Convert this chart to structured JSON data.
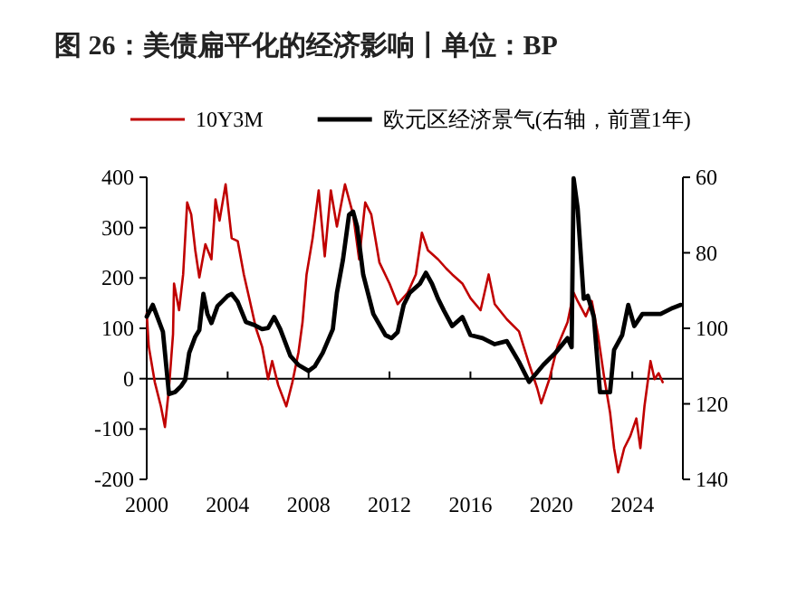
{
  "chart_data": {
    "type": "line",
    "title": "图 26：美债扁平化的经济影响丨单位：BP",
    "legend": "top",
    "xlim": [
      2000,
      2026.5
    ],
    "xticks": [
      2000,
      2004,
      2008,
      2012,
      2016,
      2020,
      2024
    ],
    "ylim": [
      -200,
      400
    ],
    "yticks": [
      -200,
      -100,
      0,
      100,
      200,
      300,
      400
    ],
    "y2lim": [
      140,
      60
    ],
    "y2ticks": [
      60,
      80,
      100,
      120,
      140
    ],
    "series": [
      {
        "name": "10Y3M",
        "color": "#c00000",
        "x": [
          2000.0,
          2000.1,
          2000.4,
          2000.7,
          2000.9,
          2001.1,
          2001.3,
          2001.35,
          2001.6,
          2001.8,
          2002.0,
          2002.2,
          2002.4,
          2002.6,
          2002.9,
          2003.2,
          2003.4,
          2003.6,
          2003.9,
          2004.2,
          2004.5,
          2004.8,
          2005.1,
          2005.4,
          2005.7,
          2006.0,
          2006.2,
          2006.5,
          2006.9,
          2007.2,
          2007.5,
          2007.7,
          2007.9,
          2008.2,
          2008.5,
          2008.8,
          2009.1,
          2009.4,
          2009.8,
          2010.2,
          2010.5,
          2010.8,
          2011.1,
          2011.5,
          2012.0,
          2012.4,
          2012.9,
          2013.3,
          2013.6,
          2013.9,
          2014.4,
          2014.8,
          2015.1,
          2015.6,
          2016.0,
          2016.5,
          2016.9,
          2017.2,
          2017.8,
          2018.4,
          2018.9,
          2019.3,
          2019.5,
          2019.9,
          2020.3,
          2020.8,
          2021.1,
          2021.3,
          2021.7,
          2022.0,
          2022.3,
          2022.6,
          2022.9,
          2023.1,
          2023.3,
          2023.6,
          2023.9,
          2024.2,
          2024.4,
          2024.6,
          2024.9,
          2025.1,
          2025.3,
          2025.5
        ],
        "values": [
          130,
          64,
          -7,
          -55,
          -96,
          -19,
          88,
          189,
          136,
          207,
          350,
          326,
          255,
          201,
          267,
          237,
          356,
          314,
          386,
          279,
          273,
          207,
          154,
          100,
          64,
          -1,
          35,
          -13,
          -55,
          -7,
          52,
          112,
          207,
          279,
          374,
          243,
          374,
          302,
          386,
          326,
          237,
          350,
          326,
          231,
          189,
          148,
          171,
          207,
          290,
          255,
          237,
          219,
          207,
          189,
          160,
          136,
          207,
          148,
          118,
          94,
          29,
          -19,
          -49,
          -1,
          64,
          112,
          171,
          154,
          124,
          154,
          88,
          5,
          -67,
          -138,
          -186,
          -138,
          -114,
          -79,
          -138,
          -55,
          35,
          -1,
          11,
          -7
        ]
      },
      {
        "name": "欧元区经济景气(右轴，前置1年)",
        "color": "#000000",
        "axis": "y2",
        "x": [
          2000.0,
          2000.3,
          2000.5,
          2000.8,
          2001.1,
          2001.4,
          2001.7,
          2001.9,
          2002.1,
          2002.4,
          2002.6,
          2002.8,
          2003.0,
          2003.2,
          2003.5,
          2004.0,
          2004.2,
          2004.5,
          2004.9,
          2005.3,
          2005.7,
          2006.0,
          2006.3,
          2006.6,
          2007.1,
          2007.5,
          2008.0,
          2008.3,
          2008.7,
          2009.2,
          2009.4,
          2009.7,
          2010.0,
          2010.2,
          2010.4,
          2010.7,
          2011.2,
          2011.8,
          2012.1,
          2012.4,
          2012.7,
          2013.0,
          2013.5,
          2013.8,
          2014.1,
          2014.4,
          2014.7,
          2015.1,
          2015.6,
          2016.0,
          2016.6,
          2017.2,
          2017.8,
          2018.4,
          2018.9,
          2019.6,
          2020.2,
          2020.8,
          2021.0,
          2021.1,
          2021.3,
          2021.6,
          2021.8,
          2022.1,
          2022.4,
          2022.9,
          2023.1,
          2023.5,
          2023.8,
          2024.1,
          2024.5,
          2024.9,
          2025.4,
          2026.0,
          2026.4
        ],
        "values": [
          96.9,
          93.8,
          96.6,
          100.9,
          117.4,
          116.9,
          115.3,
          113.7,
          106.5,
          102.2,
          100.5,
          90.9,
          96.2,
          98.6,
          94.1,
          91.4,
          90.9,
          93.0,
          98.3,
          99.1,
          100.2,
          99.9,
          97.0,
          100.2,
          107.3,
          109.7,
          111.3,
          110.1,
          106.5,
          100.2,
          90.6,
          81.8,
          69.9,
          69.1,
          73.1,
          85.8,
          96.2,
          101.8,
          102.6,
          101.0,
          93.8,
          90.6,
          88.2,
          85.3,
          88.2,
          92.2,
          95.4,
          99.4,
          97.0,
          101.8,
          102.6,
          104.2,
          103.4,
          108.9,
          114.2,
          109.7,
          106.5,
          102.6,
          105.0,
          60.3,
          68.3,
          92.2,
          91.4,
          97.0,
          116.9,
          116.9,
          105.7,
          101.8,
          93.8,
          99.4,
          96.2,
          96.2,
          96.2,
          94.6,
          93.8
        ]
      }
    ]
  }
}
